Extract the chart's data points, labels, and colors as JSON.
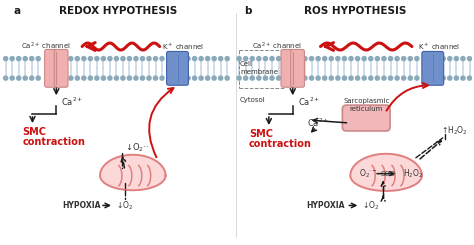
{
  "title_a": "REDOX HYPOTHESIS",
  "title_b": "ROS HYPOTHESIS",
  "label_a": "a",
  "label_b": "b",
  "bg_color": "#ffffff",
  "membrane_fill": "#d8e4ee",
  "membrane_head": "#8aaabb",
  "membrane_tail": "#c8d8e8",
  "ca_fill": "#f0b0b0",
  "ca_edge": "#cc8888",
  "k_fill": "#7090cc",
  "k_edge": "#4060aa",
  "mito_fill": "#fcd8d8",
  "mito_edge": "#e08080",
  "sr_fill": "#f0b8b8",
  "sr_edge": "#cc8888",
  "red_color": "#cc1111",
  "black_color": "#1a1a1a",
  "smc_color": "#cc1111",
  "text_color": "#333333",
  "gray_dash": "#888888"
}
